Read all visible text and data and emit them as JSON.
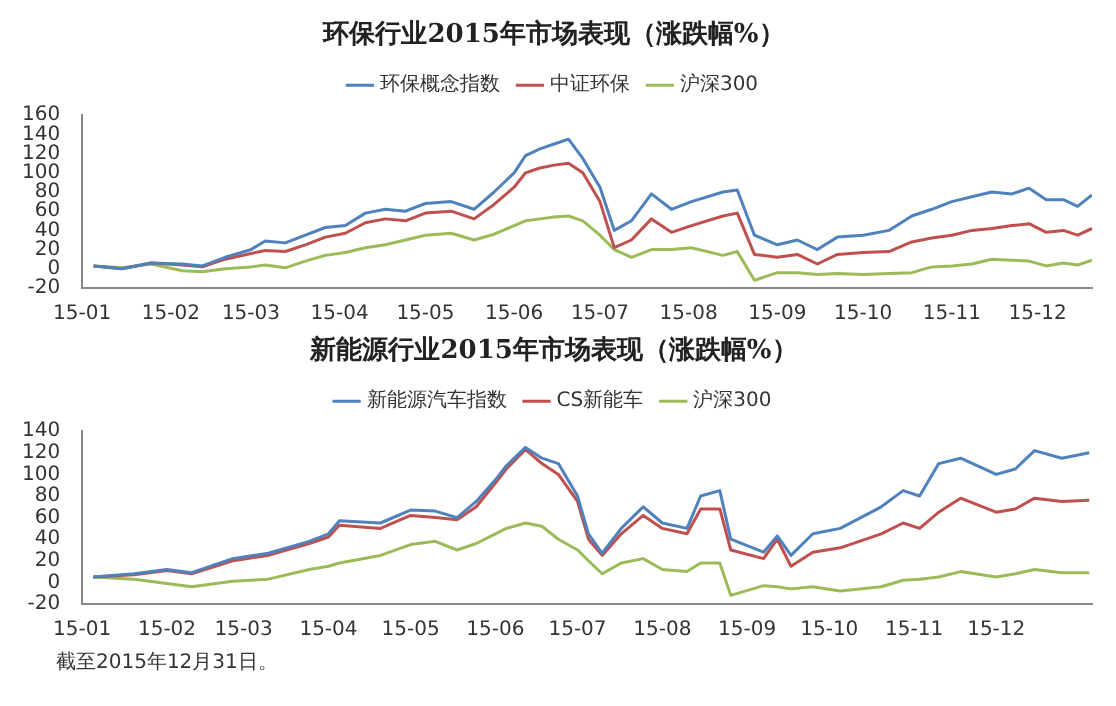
{
  "chart_data": [
    {
      "type": "line",
      "title": "环保行业2015年市场表现（涨跌幅%）",
      "legend": "top",
      "marker": "none",
      "grid": false,
      "x": [
        "2015-01-05",
        "2015-01-15",
        "2015-01-25",
        "2015-02-05",
        "2015-02-12",
        "2015-02-20",
        "2015-03-01",
        "2015-03-06",
        "2015-03-13",
        "2015-03-20",
        "2015-03-27",
        "2015-04-03",
        "2015-04-10",
        "2015-04-17",
        "2015-04-24",
        "2015-05-01",
        "2015-05-10",
        "2015-05-18",
        "2015-05-25",
        "2015-06-01",
        "2015-06-05",
        "2015-06-10",
        "2015-06-15",
        "2015-06-20",
        "2015-06-25",
        "2015-07-01",
        "2015-07-06",
        "2015-07-12",
        "2015-07-19",
        "2015-07-26",
        "2015-08-02",
        "2015-08-13",
        "2015-08-18",
        "2015-08-24",
        "2015-09-01",
        "2015-09-08",
        "2015-09-15",
        "2015-09-22",
        "2015-10-01",
        "2015-10-10",
        "2015-10-18",
        "2015-10-25",
        "2015-11-01",
        "2015-11-08",
        "2015-11-15",
        "2015-11-22",
        "2015-11-28",
        "2015-12-04",
        "2015-12-10",
        "2015-12-15",
        "2015-12-20"
      ],
      "xlim": [
        "2015-01-01",
        "2015-12-20"
      ],
      "xticks": [
        {
          "value": "2015-01-01",
          "label": "15-01"
        },
        {
          "value": "2015-02-01",
          "label": "15-02"
        },
        {
          "value": "2015-03-01",
          "label": "15-03"
        },
        {
          "value": "2015-04-01",
          "label": "15-04"
        },
        {
          "value": "2015-05-01",
          "label": "15-05"
        },
        {
          "value": "2015-06-01",
          "label": "15-06"
        },
        {
          "value": "2015-07-01",
          "label": "15-07"
        },
        {
          "value": "2015-08-01",
          "label": "15-08"
        },
        {
          "value": "2015-09-01",
          "label": "15-09"
        },
        {
          "value": "2015-10-01",
          "label": "15-10"
        },
        {
          "value": "2015-11-01",
          "label": "15-11"
        },
        {
          "value": "2015-12-01",
          "label": "15-12"
        }
      ],
      "ylim": [
        -20,
        160
      ],
      "yticks": [
        -20,
        0,
        20,
        40,
        60,
        80,
        100,
        120,
        140,
        160
      ],
      "series": [
        {
          "name": "环保概念指数",
          "color": "#4f81bd",
          "values": [
            3,
            0,
            6,
            5,
            3,
            12,
            20,
            29,
            27,
            35,
            43,
            45,
            58,
            62,
            60,
            68,
            70,
            62,
            80,
            100,
            118,
            125,
            130,
            135,
            115,
            85,
            40,
            50,
            78,
            62,
            70,
            80,
            82,
            35,
            25,
            30,
            20,
            33,
            35,
            40,
            55,
            62,
            70,
            75,
            80,
            78,
            84,
            72,
            72,
            65,
            77
          ]
        },
        {
          "name": "中证环保",
          "color": "#c0504d",
          "values": [
            3,
            0,
            6,
            4,
            2,
            10,
            16,
            19,
            18,
            25,
            33,
            37,
            48,
            52,
            50,
            58,
            60,
            52,
            67,
            85,
            100,
            105,
            108,
            110,
            100,
            70,
            22,
            30,
            52,
            38,
            45,
            55,
            58,
            15,
            12,
            15,
            5,
            15,
            17,
            18,
            28,
            32,
            35,
            40,
            42,
            45,
            47,
            38,
            40,
            35,
            42
          ]
        },
        {
          "name": "沪深300",
          "color": "#9bbb59",
          "values": [
            3,
            1,
            5,
            -2,
            -3,
            0,
            2,
            4,
            1,
            8,
            14,
            17,
            22,
            25,
            30,
            35,
            37,
            30,
            36,
            45,
            50,
            52,
            54,
            55,
            50,
            35,
            20,
            12,
            20,
            20,
            22,
            14,
            18,
            -12,
            -4,
            -4,
            -6,
            -5,
            -6,
            -5,
            -4,
            2,
            3,
            5,
            10,
            9,
            8,
            3,
            6,
            4,
            9
          ]
        }
      ]
    },
    {
      "type": "line",
      "title": "新能源行业2015年市场表现（涨跌幅%）",
      "legend": "top",
      "marker": "none",
      "grid": false,
      "x": [
        "2015-01-05",
        "2015-01-20",
        "2015-02-01",
        "2015-02-10",
        "2015-02-25",
        "2015-03-10",
        "2015-03-25",
        "2015-04-01",
        "2015-04-05",
        "2015-04-20",
        "2015-05-01",
        "2015-05-10",
        "2015-05-18",
        "2015-05-25",
        "2015-06-01",
        "2015-06-05",
        "2015-06-12",
        "2015-06-18",
        "2015-06-24",
        "2015-07-01",
        "2015-07-05",
        "2015-07-10",
        "2015-07-17",
        "2015-07-25",
        "2015-08-01",
        "2015-08-10",
        "2015-08-15",
        "2015-08-22",
        "2015-08-26",
        "2015-09-07",
        "2015-09-12",
        "2015-09-17",
        "2015-09-25",
        "2015-10-05",
        "2015-10-20",
        "2015-10-28",
        "2015-11-03",
        "2015-11-10",
        "2015-11-18",
        "2015-12-01",
        "2015-12-08",
        "2015-12-15",
        "2015-12-25",
        "2016-01-04"
      ],
      "xlim": [
        "2015-01-01",
        "2016-01-05"
      ],
      "xticks": [
        {
          "value": "2015-01-01",
          "label": "15-01"
        },
        {
          "value": "2015-02-01",
          "label": "15-02"
        },
        {
          "value": "2015-03-01",
          "label": "15-03"
        },
        {
          "value": "2015-04-01",
          "label": "15-04"
        },
        {
          "value": "2015-05-01",
          "label": "15-05"
        },
        {
          "value": "2015-06-01",
          "label": "15-06"
        },
        {
          "value": "2015-07-01",
          "label": "15-07"
        },
        {
          "value": "2015-08-01",
          "label": "15-08"
        },
        {
          "value": "2015-09-01",
          "label": "15-09"
        },
        {
          "value": "2015-10-01",
          "label": "15-10"
        },
        {
          "value": "2015-11-01",
          "label": "15-11"
        },
        {
          "value": "2015-12-01",
          "label": "15-12"
        }
      ],
      "ylim": [
        -20,
        140
      ],
      "yticks": [
        -20,
        0,
        20,
        40,
        60,
        80,
        100,
        120,
        140
      ],
      "series": [
        {
          "name": "新能源汽车指数",
          "color": "#4f81bd",
          "values": [
            5,
            8,
            12,
            9,
            22,
            27,
            38,
            45,
            57,
            55,
            67,
            66,
            60,
            75,
            95,
            108,
            125,
            115,
            110,
            80,
            45,
            27,
            50,
            70,
            55,
            50,
            80,
            85,
            40,
            28,
            43,
            25,
            45,
            50,
            70,
            85,
            80,
            110,
            115,
            100,
            105,
            122,
            115,
            120
          ]
        },
        {
          "name": "CS新能车",
          "color": "#c0504d",
          "values": [
            5,
            7,
            11,
            8,
            20,
            25,
            36,
            42,
            53,
            50,
            62,
            60,
            58,
            70,
            92,
            105,
            123,
            110,
            100,
            75,
            40,
            25,
            45,
            62,
            50,
            45,
            68,
            68,
            30,
            22,
            40,
            15,
            28,
            32,
            45,
            55,
            50,
            65,
            78,
            65,
            68,
            78,
            75,
            76
          ]
        },
        {
          "name": "沪深300",
          "color": "#9bbb59",
          "values": [
            5,
            3,
            -1,
            -4,
            1,
            3,
            12,
            15,
            18,
            25,
            35,
            38,
            30,
            36,
            45,
            50,
            55,
            52,
            40,
            30,
            20,
            8,
            18,
            22,
            12,
            10,
            18,
            18,
            -12,
            -3,
            -4,
            -6,
            -4,
            -8,
            -4,
            2,
            3,
            5,
            10,
            5,
            8,
            12,
            9,
            9
          ]
        }
      ],
      "annotations": [
        "截至2015年12月31日。"
      ]
    }
  ]
}
